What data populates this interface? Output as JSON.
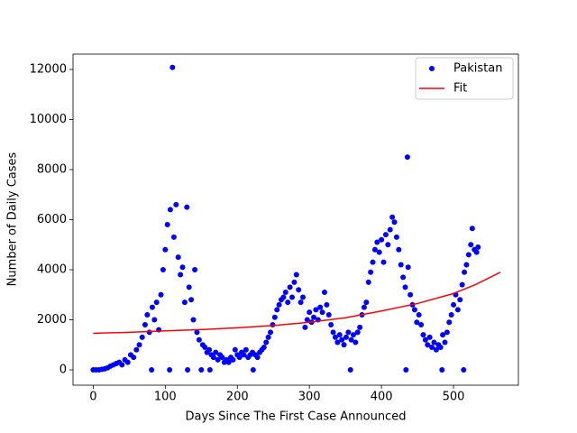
{
  "chart_data": {
    "type": "scatter",
    "xlabel": "Days Since The First Case Announced",
    "ylabel": "Number of Daily Cases",
    "xlim": [
      -28,
      590
    ],
    "ylim": [
      -613,
      12613
    ],
    "xticks": [
      0,
      100,
      200,
      300,
      400,
      500
    ],
    "yticks": [
      0,
      2000,
      4000,
      6000,
      8000,
      10000,
      12000
    ],
    "legend": "upper right",
    "series": [
      {
        "name": "Pakistan",
        "color": "#0000ff",
        "mode": "markers",
        "x": [
          0,
          4,
          8,
          12,
          16,
          20,
          24,
          28,
          32,
          36,
          40,
          44,
          48,
          52,
          56,
          60,
          64,
          68,
          72,
          75,
          78,
          81,
          82,
          85,
          88,
          91,
          94,
          97,
          100,
          103,
          106,
          107,
          110,
          112,
          115,
          118,
          121,
          124,
          127,
          130,
          131,
          133,
          136,
          139,
          141,
          144,
          147,
          150,
          152,
          155,
          158,
          161,
          162,
          164,
          167,
          170,
          173,
          176,
          179,
          182,
          185,
          188,
          191,
          194,
          197,
          200,
          203,
          206,
          209,
          212,
          215,
          218,
          221,
          222,
          225,
          228,
          231,
          234,
          237,
          240,
          243,
          246,
          249,
          252,
          255,
          258,
          261,
          264,
          267,
          270,
          273,
          276,
          279,
          282,
          285,
          288,
          291,
          294,
          297,
          300,
          303,
          306,
          309,
          312,
          315,
          318,
          321,
          324,
          327,
          330,
          333,
          336,
          339,
          342,
          345,
          348,
          351,
          354,
          357,
          358,
          361,
          364,
          367,
          370,
          373,
          376,
          379,
          382,
          385,
          388,
          391,
          394,
          397,
          400,
          403,
          406,
          409,
          412,
          415,
          418,
          421,
          424,
          427,
          430,
          433,
          434,
          436,
          437,
          440,
          443,
          446,
          449,
          452,
          455,
          458,
          461,
          464,
          467,
          470,
          473,
          476,
          479,
          482,
          484,
          485,
          488,
          491,
          494,
          497,
          500,
          503,
          506,
          509,
          512,
          514,
          515,
          518,
          521,
          524,
          526,
          529,
          532,
          534
        ],
        "values": [
          0,
          0,
          0,
          20,
          40,
          80,
          150,
          200,
          250,
          300,
          200,
          400,
          300,
          600,
          500,
          800,
          1000,
          1300,
          1800,
          2200,
          1500,
          0,
          2500,
          2000,
          2700,
          1600,
          3000,
          4000,
          4800,
          5800,
          0,
          6400,
          12080,
          5300,
          6600,
          4500,
          3800,
          4100,
          2700,
          6500,
          0,
          3300,
          2800,
          2000,
          4000,
          1500,
          1200,
          0,
          1000,
          900,
          700,
          800,
          0,
          600,
          500,
          700,
          400,
          600,
          500,
          300,
          400,
          300,
          500,
          400,
          800,
          600,
          500,
          700,
          600,
          800,
          500,
          600,
          700,
          0,
          600,
          500,
          700,
          800,
          900,
          1100,
          1300,
          1500,
          1800,
          2100,
          2400,
          2600,
          2800,
          2900,
          3100,
          2700,
          3300,
          2900,
          3500,
          3800,
          3200,
          2700,
          2900,
          1700,
          2000,
          2300,
          1900,
          2100,
          2400,
          2000,
          2500,
          2300,
          3100,
          2600,
          2200,
          1800,
          1500,
          1300,
          1100,
          1400,
          1200,
          1000,
          1300,
          1500,
          0,
          1200,
          1400,
          1100,
          1500,
          1700,
          2200,
          2500,
          2700,
          3500,
          3900,
          4300,
          4800,
          5100,
          4700,
          5200,
          4300,
          5400,
          5000,
          5600,
          6100,
          5900,
          5300,
          4800,
          4200,
          3700,
          3300,
          0,
          8500,
          4100,
          3000,
          2600,
          2400,
          1900,
          2200,
          1800,
          1400,
          1200,
          1000,
          1300,
          900,
          1100,
          800,
          1000,
          900,
          0,
          1400,
          1100,
          1500,
          1900,
          2200,
          2600,
          3000,
          2400,
          2800,
          3400,
          0,
          3900,
          4200,
          4600,
          5000,
          5650,
          4800,
          4700,
          4900
        ]
      },
      {
        "name": "Fit",
        "color": "#ff0000",
        "mode": "line",
        "x": [
          0,
          50,
          100,
          150,
          200,
          250,
          300,
          350,
          400,
          450,
          500,
          530,
          565
        ],
        "values": [
          1460,
          1500,
          1560,
          1610,
          1680,
          1770,
          1900,
          2080,
          2350,
          2650,
          3050,
          3400,
          3900
        ]
      }
    ]
  }
}
